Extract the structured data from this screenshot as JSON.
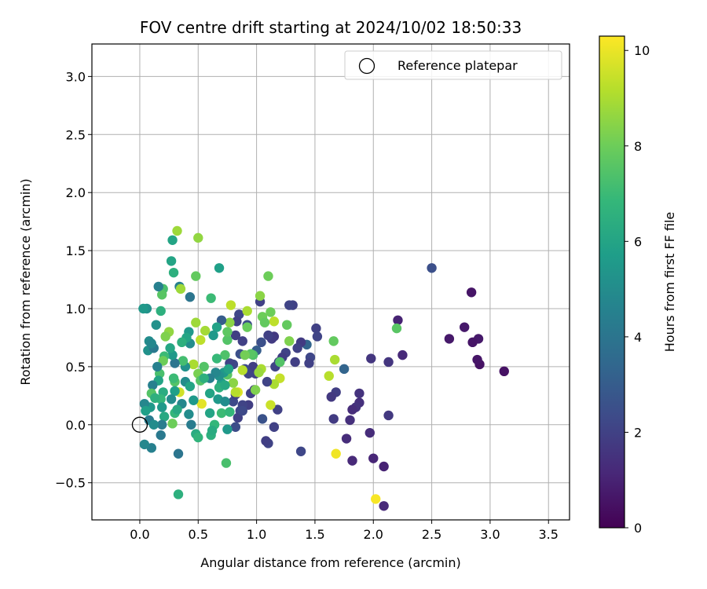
{
  "chart_data": {
    "type": "scatter",
    "title": "FOV centre drift starting at 2024/10/02 18:50:33",
    "xlabel": "Angular distance from reference (arcmin)",
    "ylabel": "Rotation from reference (arcmin)",
    "xlim": [
      -0.41,
      3.68
    ],
    "ylim": [
      -0.82,
      3.28
    ],
    "xticks": [
      0.0,
      0.5,
      1.0,
      1.5,
      2.0,
      2.5,
      3.0,
      3.5
    ],
    "xtick_labels": [
      "0.0",
      "0.5",
      "1.0",
      "1.5",
      "2.0",
      "2.5",
      "3.0",
      "3.5"
    ],
    "yticks": [
      -0.5,
      0.0,
      0.5,
      1.0,
      1.5,
      2.0,
      2.5,
      3.0
    ],
    "ytick_labels": [
      "−0.5",
      "0.0",
      "0.5",
      "1.0",
      "1.5",
      "2.0",
      "2.5",
      "3.0"
    ],
    "grid": true,
    "legend": {
      "placement": "top-right",
      "entries": [
        "Reference platepar"
      ]
    },
    "reference_point": {
      "x": 0.0,
      "y": 0.0
    },
    "colorbar": {
      "label": "Hours from first FF file",
      "colormap": "viridis",
      "range": [
        0,
        10.3
      ],
      "ticks": [
        0,
        2,
        4,
        6,
        8,
        10
      ],
      "tick_labels": [
        "0",
        "2",
        "4",
        "6",
        "8",
        "10"
      ]
    },
    "points": [
      {
        "x": 3.12,
        "y": 0.46,
        "h": 0.5
      },
      {
        "x": 2.91,
        "y": 0.52,
        "h": 0.5
      },
      {
        "x": 2.89,
        "y": 0.56,
        "h": 0.6
      },
      {
        "x": 2.9,
        "y": 0.74,
        "h": 0.7
      },
      {
        "x": 2.85,
        "y": 0.71,
        "h": 0.6
      },
      {
        "x": 2.84,
        "y": 1.14,
        "h": 0.6
      },
      {
        "x": 2.78,
        "y": 0.84,
        "h": 0.7
      },
      {
        "x": 2.65,
        "y": 0.74,
        "h": 0.7
      },
      {
        "x": 2.5,
        "y": 1.35,
        "h": 2.5
      },
      {
        "x": 2.25,
        "y": 0.6,
        "h": 1.2
      },
      {
        "x": 2.21,
        "y": 0.9,
        "h": 1.0
      },
      {
        "x": 2.13,
        "y": 0.54,
        "h": 1.6
      },
      {
        "x": 2.13,
        "y": 0.08,
        "h": 1.7
      },
      {
        "x": 2.09,
        "y": -0.36,
        "h": 1.0
      },
      {
        "x": 2.09,
        "y": -0.7,
        "h": 1.2
      },
      {
        "x": 2.0,
        "y": -0.29,
        "h": 1.1
      },
      {
        "x": 1.98,
        "y": 0.57,
        "h": 1.6
      },
      {
        "x": 1.97,
        "y": -0.07,
        "h": 1.3
      },
      {
        "x": 2.2,
        "y": 0.83,
        "h": 7.6
      },
      {
        "x": 2.02,
        "y": -0.64,
        "h": 10.2
      },
      {
        "x": 1.68,
        "y": -0.25,
        "h": 10.1
      },
      {
        "x": 1.88,
        "y": 0.27,
        "h": 1.5
      },
      {
        "x": 1.88,
        "y": 0.19,
        "h": 1.4
      },
      {
        "x": 1.85,
        "y": 0.15,
        "h": 1.5
      },
      {
        "x": 1.82,
        "y": 0.13,
        "h": 1.3
      },
      {
        "x": 1.82,
        "y": -0.31,
        "h": 1.2
      },
      {
        "x": 1.8,
        "y": 0.04,
        "h": 1.4
      },
      {
        "x": 1.77,
        "y": -0.12,
        "h": 1.3
      },
      {
        "x": 1.75,
        "y": 0.48,
        "h": 3.3
      },
      {
        "x": 1.68,
        "y": 0.28,
        "h": 1.9
      },
      {
        "x": 1.66,
        "y": 0.05,
        "h": 1.8
      },
      {
        "x": 1.64,
        "y": 0.24,
        "h": 1.7
      },
      {
        "x": 1.67,
        "y": 0.56,
        "h": 9.0
      },
      {
        "x": 1.62,
        "y": 0.42,
        "h": 9.2
      },
      {
        "x": 1.66,
        "y": 0.72,
        "h": 7.8
      },
      {
        "x": 1.51,
        "y": 0.83,
        "h": 2.0
      },
      {
        "x": 1.52,
        "y": 0.76,
        "h": 2.1
      },
      {
        "x": 1.46,
        "y": 0.58,
        "h": 2.2
      },
      {
        "x": 1.45,
        "y": 0.53,
        "h": 2.0
      },
      {
        "x": 1.43,
        "y": 0.69,
        "h": 3.3
      },
      {
        "x": 1.38,
        "y": 0.71,
        "h": 1.8
      },
      {
        "x": 1.35,
        "y": 0.66,
        "h": 2.0
      },
      {
        "x": 1.33,
        "y": 0.54,
        "h": 1.9
      },
      {
        "x": 1.31,
        "y": 1.03,
        "h": 2.0
      },
      {
        "x": 1.28,
        "y": 1.03,
        "h": 2.1
      },
      {
        "x": 1.25,
        "y": 0.62,
        "h": 2.1
      },
      {
        "x": 1.22,
        "y": 0.58,
        "h": 1.9
      },
      {
        "x": 1.19,
        "y": 0.54,
        "h": 2.0
      },
      {
        "x": 1.16,
        "y": 0.5,
        "h": 2.1
      },
      {
        "x": 1.38,
        "y": -0.23,
        "h": 2.2
      },
      {
        "x": 1.18,
        "y": 0.13,
        "h": 2.0
      },
      {
        "x": 1.15,
        "y": -0.02,
        "h": 2.0
      },
      {
        "x": 1.28,
        "y": 0.72,
        "h": 8.3
      },
      {
        "x": 1.26,
        "y": 0.86,
        "h": 7.8
      },
      {
        "x": 1.2,
        "y": 0.4,
        "h": 9.4
      },
      {
        "x": 1.2,
        "y": 0.54,
        "h": 7.5
      },
      {
        "x": 1.15,
        "y": 0.89,
        "h": 9.3
      },
      {
        "x": 1.12,
        "y": 0.97,
        "h": 8.0
      },
      {
        "x": 1.1,
        "y": 1.28,
        "h": 8.0
      },
      {
        "x": 1.12,
        "y": 0.17,
        "h": 9.5
      },
      {
        "x": 1.15,
        "y": 0.35,
        "h": 9.0
      },
      {
        "x": 1.15,
        "y": 0.76,
        "h": 1.7
      },
      {
        "x": 1.13,
        "y": 0.74,
        "h": 1.8
      },
      {
        "x": 1.1,
        "y": 0.77,
        "h": 2.0
      },
      {
        "x": 1.09,
        "y": 0.37,
        "h": 2.1
      },
      {
        "x": 1.1,
        "y": -0.16,
        "h": 2.1
      },
      {
        "x": 1.08,
        "y": -0.14,
        "h": 1.9
      },
      {
        "x": 1.05,
        "y": 0.05,
        "h": 2.6
      },
      {
        "x": 1.04,
        "y": 0.71,
        "h": 2.5
      },
      {
        "x": 1.03,
        "y": 1.06,
        "h": 2.0
      },
      {
        "x": 1.0,
        "y": 0.64,
        "h": 3.0
      },
      {
        "x": 0.99,
        "y": 0.44,
        "h": 2.0
      },
      {
        "x": 0.97,
        "y": 0.5,
        "h": 1.9
      },
      {
        "x": 0.92,
        "y": 0.86,
        "h": 2.4
      },
      {
        "x": 0.93,
        "y": 0.44,
        "h": 2.1
      },
      {
        "x": 0.9,
        "y": 0.48,
        "h": 2.3
      },
      {
        "x": 0.88,
        "y": 0.72,
        "h": 2.0
      },
      {
        "x": 0.86,
        "y": 0.61,
        "h": 2.5
      },
      {
        "x": 0.85,
        "y": 0.95,
        "h": 2.2
      },
      {
        "x": 0.83,
        "y": 0.89,
        "h": 2.0
      },
      {
        "x": 0.82,
        "y": 0.77,
        "h": 1.9
      },
      {
        "x": 0.8,
        "y": 0.52,
        "h": 2.2
      },
      {
        "x": 0.77,
        "y": 0.53,
        "h": 2.1
      },
      {
        "x": 0.8,
        "y": 0.2,
        "h": 2.3
      },
      {
        "x": 0.82,
        "y": 0.26,
        "h": 2.0
      },
      {
        "x": 0.82,
        "y": -0.02,
        "h": 2.4
      },
      {
        "x": 0.93,
        "y": 0.17,
        "h": 1.9
      },
      {
        "x": 0.95,
        "y": 0.27,
        "h": 2.0
      },
      {
        "x": 0.98,
        "y": 0.3,
        "h": 1.8
      },
      {
        "x": 0.88,
        "y": 0.17,
        "h": 2.1
      },
      {
        "x": 0.86,
        "y": 0.12,
        "h": 2.2
      },
      {
        "x": 0.84,
        "y": 0.06,
        "h": 2.0
      },
      {
        "x": 0.88,
        "y": 0.12,
        "h": 2.3
      },
      {
        "x": 1.03,
        "y": 1.11,
        "h": 8.5
      },
      {
        "x": 1.05,
        "y": 0.93,
        "h": 8.0
      },
      {
        "x": 1.07,
        "y": 0.88,
        "h": 7.8
      },
      {
        "x": 1.04,
        "y": 0.48,
        "h": 9.0
      },
      {
        "x": 1.02,
        "y": 0.45,
        "h": 8.7
      },
      {
        "x": 0.99,
        "y": 0.3,
        "h": 8.3
      },
      {
        "x": 0.97,
        "y": 0.6,
        "h": 7.4
      },
      {
        "x": 0.95,
        "y": 0.61,
        "h": 7.6
      },
      {
        "x": 0.92,
        "y": 0.84,
        "h": 7.9
      },
      {
        "x": 0.92,
        "y": 0.98,
        "h": 9.0
      },
      {
        "x": 0.9,
        "y": 0.6,
        "h": 8.1
      },
      {
        "x": 0.88,
        "y": 0.47,
        "h": 9.2
      },
      {
        "x": 0.84,
        "y": 0.28,
        "h": 9.8
      },
      {
        "x": 0.82,
        "y": 0.28,
        "h": 9.2
      },
      {
        "x": 0.8,
        "y": 0.36,
        "h": 8.5
      },
      {
        "x": 0.78,
        "y": 1.03,
        "h": 9.3
      },
      {
        "x": 0.77,
        "y": 0.88,
        "h": 8.5
      },
      {
        "x": 0.75,
        "y": 0.73,
        "h": 7.5
      },
      {
        "x": 0.75,
        "y": 0.43,
        "h": 7.6
      },
      {
        "x": 0.73,
        "y": 0.6,
        "h": 7.4
      },
      {
        "x": 0.75,
        "y": 0.8,
        "h": 7.7
      },
      {
        "x": 0.7,
        "y": 0.9,
        "h": 3.0
      },
      {
        "x": 0.72,
        "y": 0.45,
        "h": 5.5
      },
      {
        "x": 0.7,
        "y": 0.36,
        "h": 5.8
      },
      {
        "x": 0.68,
        "y": 0.42,
        "h": 5.2
      },
      {
        "x": 0.68,
        "y": 1.35,
        "h": 5.8
      },
      {
        "x": 0.66,
        "y": 0.84,
        "h": 5.9
      },
      {
        "x": 0.65,
        "y": 0.45,
        "h": 4.8
      },
      {
        "x": 0.63,
        "y": 0.77,
        "h": 5.5
      },
      {
        "x": 0.61,
        "y": 1.09,
        "h": 7.0
      },
      {
        "x": 0.6,
        "y": 0.4,
        "h": 4.5
      },
      {
        "x": 0.6,
        "y": 0.27,
        "h": 6.0
      },
      {
        "x": 0.6,
        "y": 0.1,
        "h": 6.0
      },
      {
        "x": 0.61,
        "y": -0.09,
        "h": 6.5
      },
      {
        "x": 0.64,
        "y": 0.0,
        "h": 6.8
      },
      {
        "x": 0.62,
        "y": -0.05,
        "h": 6.3
      },
      {
        "x": 0.67,
        "y": 0.22,
        "h": 5.5
      },
      {
        "x": 0.68,
        "y": 0.32,
        "h": 6.5
      },
      {
        "x": 0.7,
        "y": 0.1,
        "h": 7.0
      },
      {
        "x": 0.73,
        "y": 0.2,
        "h": 5.0
      },
      {
        "x": 0.75,
        "y": -0.04,
        "h": 5.5
      },
      {
        "x": 0.76,
        "y": 0.48,
        "h": 6.0
      },
      {
        "x": 0.74,
        "y": -0.33,
        "h": 7.3
      },
      {
        "x": 0.77,
        "y": 0.11,
        "h": 6.8
      },
      {
        "x": 0.73,
        "y": 0.34,
        "h": 6.2
      },
      {
        "x": 0.66,
        "y": 0.57,
        "h": 6.9
      },
      {
        "x": 0.56,
        "y": 0.81,
        "h": 8.9
      },
      {
        "x": 0.55,
        "y": 0.5,
        "h": 7.5
      },
      {
        "x": 0.53,
        "y": 0.18,
        "h": 9.9
      },
      {
        "x": 0.52,
        "y": 0.73,
        "h": 9.3
      },
      {
        "x": 0.5,
        "y": 1.61,
        "h": 8.6
      },
      {
        "x": 0.48,
        "y": 1.28,
        "h": 7.8
      },
      {
        "x": 0.48,
        "y": 0.88,
        "h": 8.8
      },
      {
        "x": 0.46,
        "y": 0.52,
        "h": 9.0
      },
      {
        "x": 0.5,
        "y": 0.44,
        "h": 8.2
      },
      {
        "x": 0.52,
        "y": 0.38,
        "h": 7.5
      },
      {
        "x": 0.55,
        "y": 0.4,
        "h": 6.5
      },
      {
        "x": 0.43,
        "y": 1.1,
        "h": 4.0
      },
      {
        "x": 0.43,
        "y": 0.7,
        "h": 5.0
      },
      {
        "x": 0.42,
        "y": 0.8,
        "h": 5.5
      },
      {
        "x": 0.4,
        "y": 0.75,
        "h": 6.0
      },
      {
        "x": 0.39,
        "y": 0.5,
        "h": 5.2
      },
      {
        "x": 0.39,
        "y": 0.37,
        "h": 5.0
      },
      {
        "x": 0.37,
        "y": 0.55,
        "h": 7.2
      },
      {
        "x": 0.36,
        "y": 0.71,
        "h": 6.5
      },
      {
        "x": 0.34,
        "y": 1.19,
        "h": 4.5
      },
      {
        "x": 0.34,
        "y": 0.28,
        "h": 9.6
      },
      {
        "x": 0.36,
        "y": 0.18,
        "h": 4.8
      },
      {
        "x": 0.33,
        "y": -0.25,
        "h": 4.0
      },
      {
        "x": 0.33,
        "y": -0.6,
        "h": 6.5
      },
      {
        "x": 0.35,
        "y": 1.17,
        "h": 8.8
      },
      {
        "x": 0.32,
        "y": 1.67,
        "h": 8.8
      },
      {
        "x": 0.3,
        "y": 0.37,
        "h": 7.5
      },
      {
        "x": 0.3,
        "y": 0.29,
        "h": 5.8
      },
      {
        "x": 0.29,
        "y": 0.4,
        "h": 7.0
      },
      {
        "x": 0.28,
        "y": 1.59,
        "h": 6.0
      },
      {
        "x": 0.27,
        "y": 1.41,
        "h": 6.0
      },
      {
        "x": 0.29,
        "y": 1.31,
        "h": 6.5
      },
      {
        "x": 0.3,
        "y": 0.53,
        "h": 4.0
      },
      {
        "x": 0.28,
        "y": 0.6,
        "h": 5.5
      },
      {
        "x": 0.26,
        "y": 0.66,
        "h": 6.1
      },
      {
        "x": 0.25,
        "y": 0.8,
        "h": 8.6
      },
      {
        "x": 0.22,
        "y": 0.76,
        "h": 8.3
      },
      {
        "x": 0.21,
        "y": 0.59,
        "h": 7.0
      },
      {
        "x": 0.2,
        "y": 0.55,
        "h": 8.0
      },
      {
        "x": 0.2,
        "y": 1.17,
        "h": 7.3
      },
      {
        "x": 0.19,
        "y": 1.12,
        "h": 7.6
      },
      {
        "x": 0.16,
        "y": 1.19,
        "h": 4.5
      },
      {
        "x": 0.18,
        "y": 0.98,
        "h": 6.5
      },
      {
        "x": 0.14,
        "y": 0.86,
        "h": 5.2
      },
      {
        "x": 0.17,
        "y": 0.44,
        "h": 7.3
      },
      {
        "x": 0.15,
        "y": 0.5,
        "h": 4.5
      },
      {
        "x": 0.16,
        "y": 0.38,
        "h": 6.0
      },
      {
        "x": 0.2,
        "y": 0.28,
        "h": 6.3
      },
      {
        "x": 0.18,
        "y": 0.22,
        "h": 6.8
      },
      {
        "x": 0.19,
        "y": 0.15,
        "h": 5.5
      },
      {
        "x": 0.21,
        "y": 0.07,
        "h": 6.2
      },
      {
        "x": 0.19,
        "y": 0.0,
        "h": 4.3
      },
      {
        "x": 0.18,
        "y": -0.09,
        "h": 4.2
      },
      {
        "x": 0.27,
        "y": 0.22,
        "h": 5.0
      },
      {
        "x": 0.28,
        "y": 0.01,
        "h": 8.0
      },
      {
        "x": 0.3,
        "y": 0.1,
        "h": 6.8
      },
      {
        "x": 0.32,
        "y": 0.13,
        "h": 6.2
      },
      {
        "x": 0.42,
        "y": 0.09,
        "h": 5.0
      },
      {
        "x": 0.44,
        "y": 0.0,
        "h": 4.3
      },
      {
        "x": 0.46,
        "y": 0.21,
        "h": 5.5
      },
      {
        "x": 0.48,
        "y": -0.08,
        "h": 6.3
      },
      {
        "x": 0.5,
        "y": -0.11,
        "h": 6.7
      },
      {
        "x": 0.43,
        "y": 0.33,
        "h": 6.0
      },
      {
        "x": 0.11,
        "y": 0.34,
        "h": 4.5
      },
      {
        "x": 0.1,
        "y": 0.27,
        "h": 7.5
      },
      {
        "x": 0.09,
        "y": 0.15,
        "h": 5.5
      },
      {
        "x": 0.07,
        "y": 0.64,
        "h": 5.2
      },
      {
        "x": 0.08,
        "y": 0.72,
        "h": 5.0
      },
      {
        "x": 0.06,
        "y": 1.0,
        "h": 5.2
      },
      {
        "x": 0.03,
        "y": 1.0,
        "h": 5.5
      },
      {
        "x": 0.04,
        "y": 0.18,
        "h": 4.8
      },
      {
        "x": 0.05,
        "y": 0.12,
        "h": 5.8
      },
      {
        "x": 0.08,
        "y": 0.04,
        "h": 4.3
      },
      {
        "x": 0.12,
        "y": 0.0,
        "h": 5.0
      },
      {
        "x": 0.1,
        "y": -0.2,
        "h": 4.5
      },
      {
        "x": 0.04,
        "y": -0.17,
        "h": 4.8
      },
      {
        "x": 0.13,
        "y": 0.23,
        "h": 6.5
      },
      {
        "x": 0.12,
        "y": 0.66,
        "h": 4.2
      },
      {
        "x": 0.1,
        "y": 0.7,
        "h": 4.8
      }
    ]
  }
}
